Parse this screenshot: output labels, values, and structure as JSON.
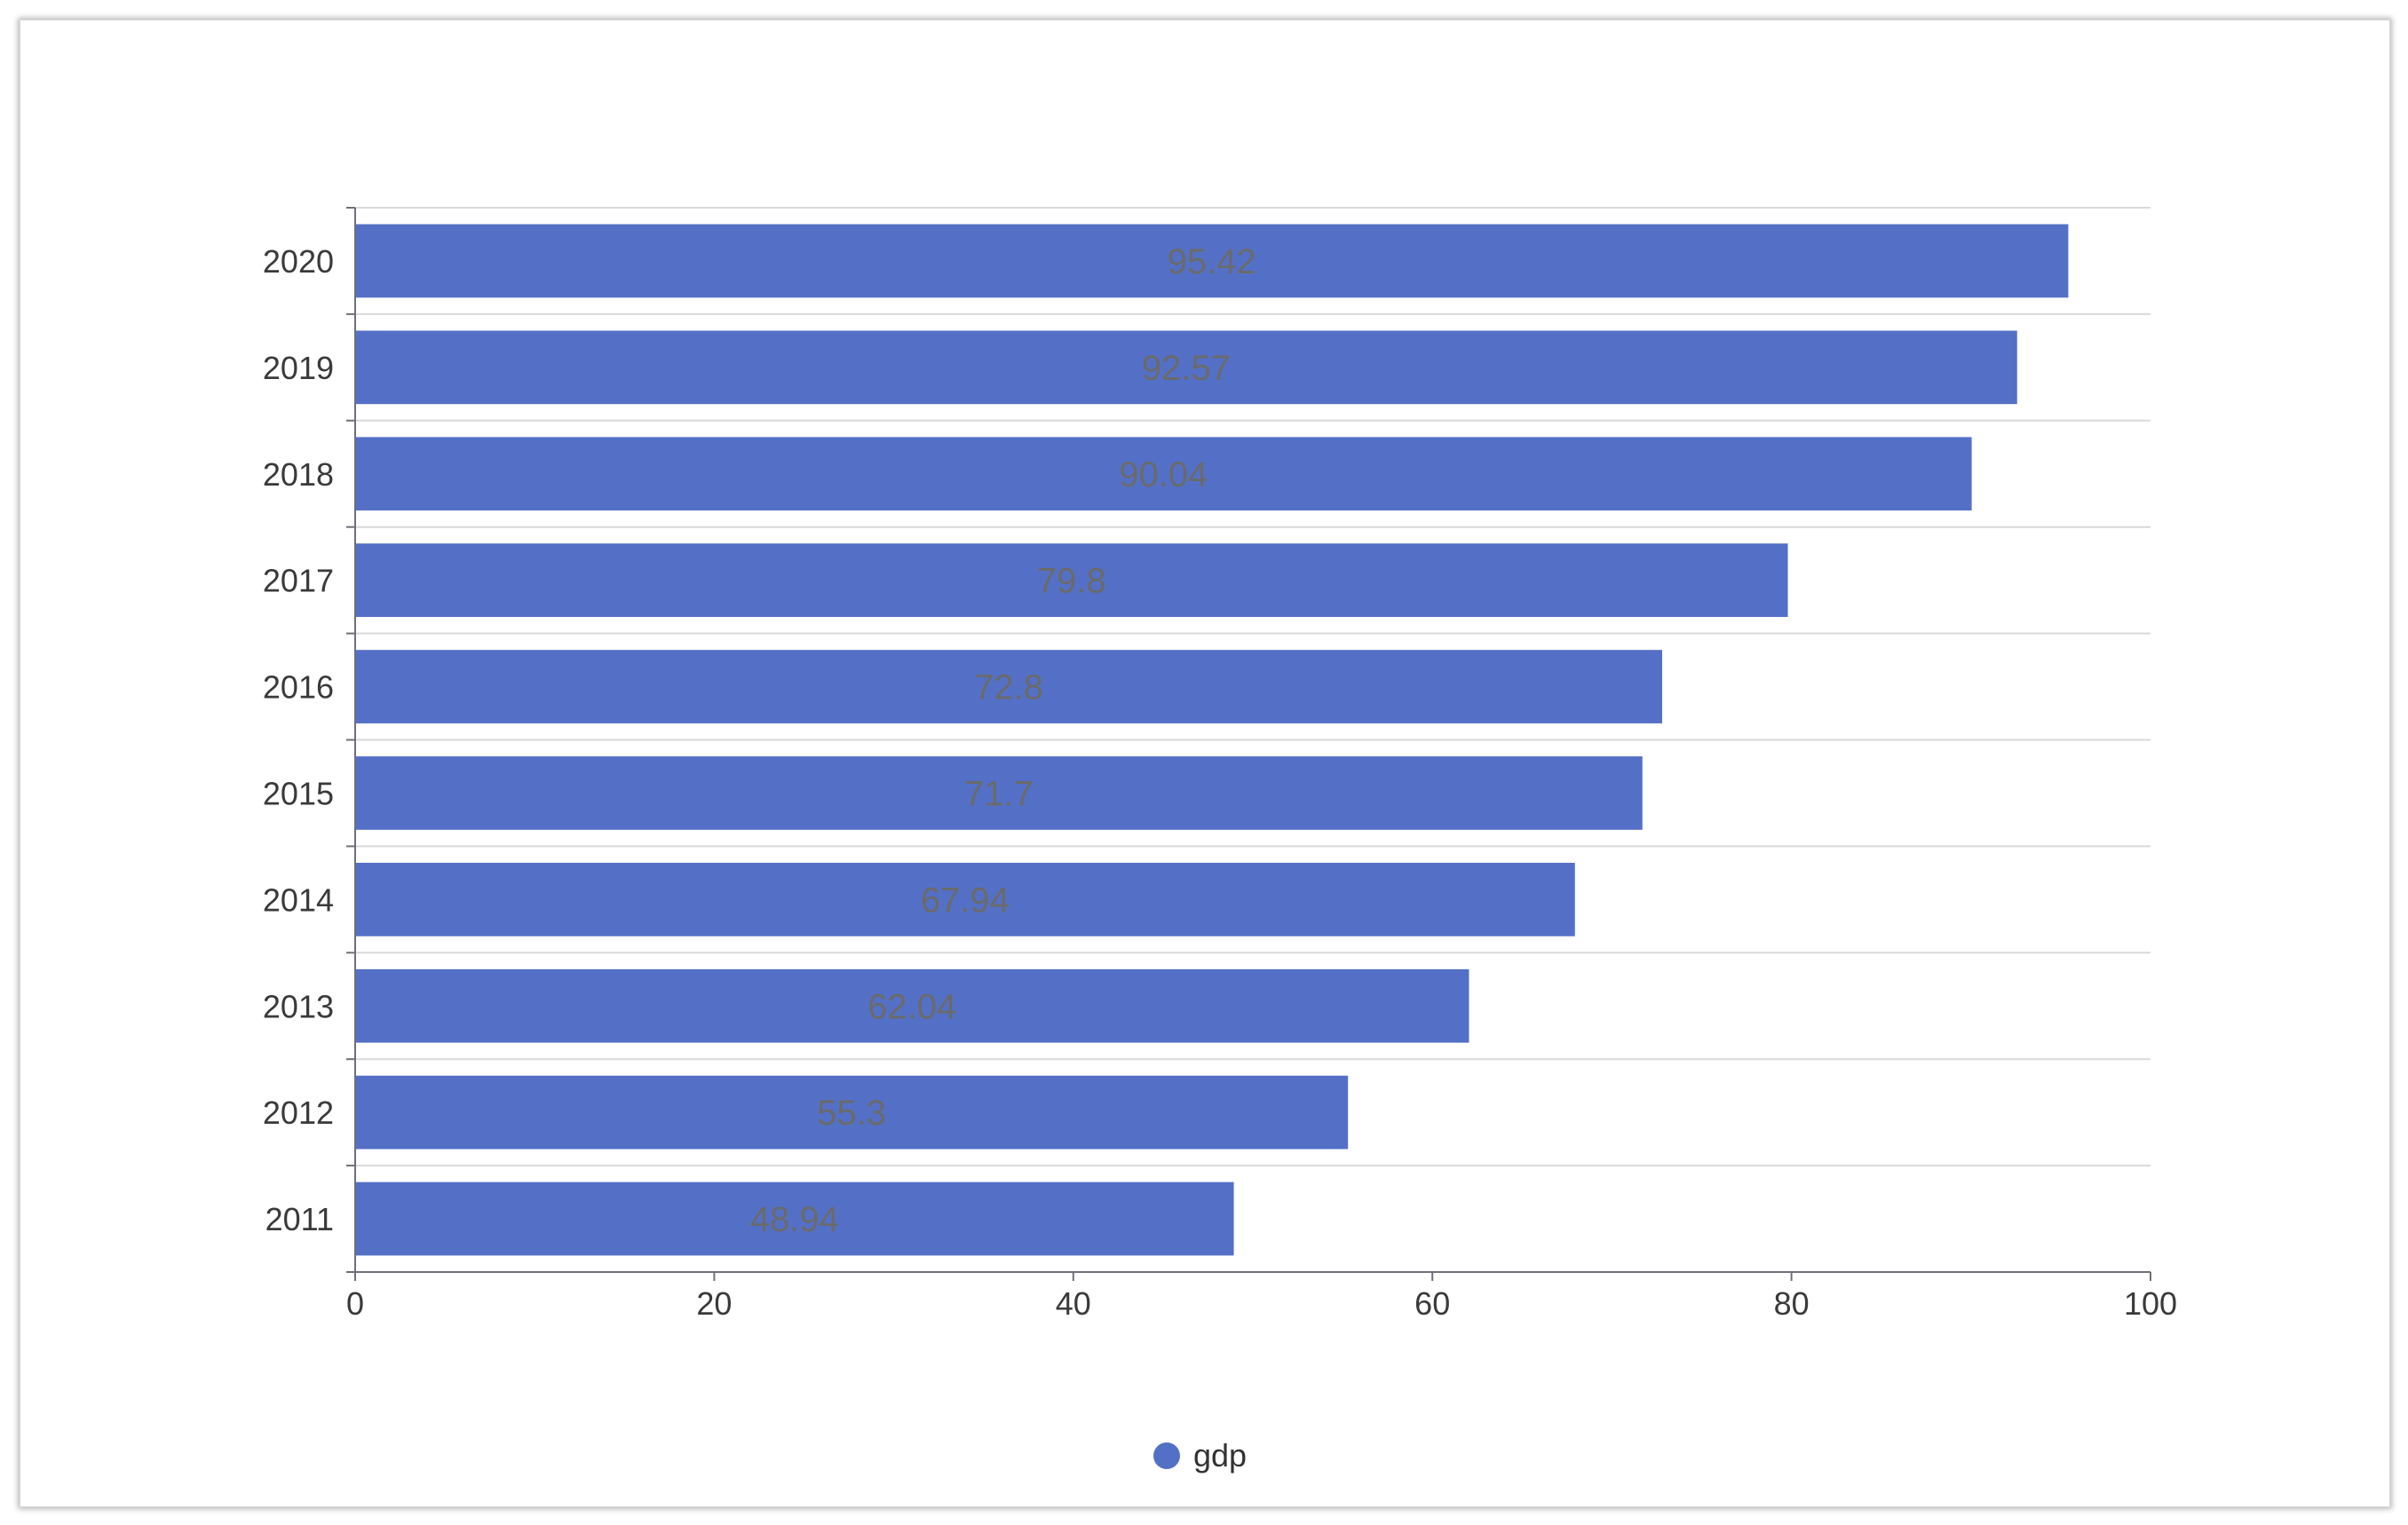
{
  "chart_data": {
    "type": "bar",
    "orientation": "horizontal",
    "categories": [
      "2020",
      "2019",
      "2018",
      "2017",
      "2016",
      "2015",
      "2014",
      "2013",
      "2012",
      "2011"
    ],
    "series": [
      {
        "name": "gdp",
        "values": [
          95.42,
          92.57,
          90.04,
          79.8,
          72.8,
          71.7,
          67.94,
          62.04,
          55.3,
          48.94
        ],
        "labels": [
          "95.42",
          "92.57",
          "90.04",
          "79.8",
          "72.8",
          "71.7",
          "67.94",
          "62.04",
          "55.3",
          "48.94"
        ]
      }
    ],
    "x_ticks": [
      "0",
      "20",
      "40",
      "60",
      "80",
      "100"
    ],
    "xlim": [
      0,
      100
    ],
    "title": "",
    "xlabel": "",
    "ylabel": "",
    "grid": true,
    "legend": "bottom-center",
    "colors": {
      "bar": "#5470c6",
      "axis": "#6e7079",
      "grid": "#d9d9d9",
      "label": "#6a6a6a"
    }
  }
}
